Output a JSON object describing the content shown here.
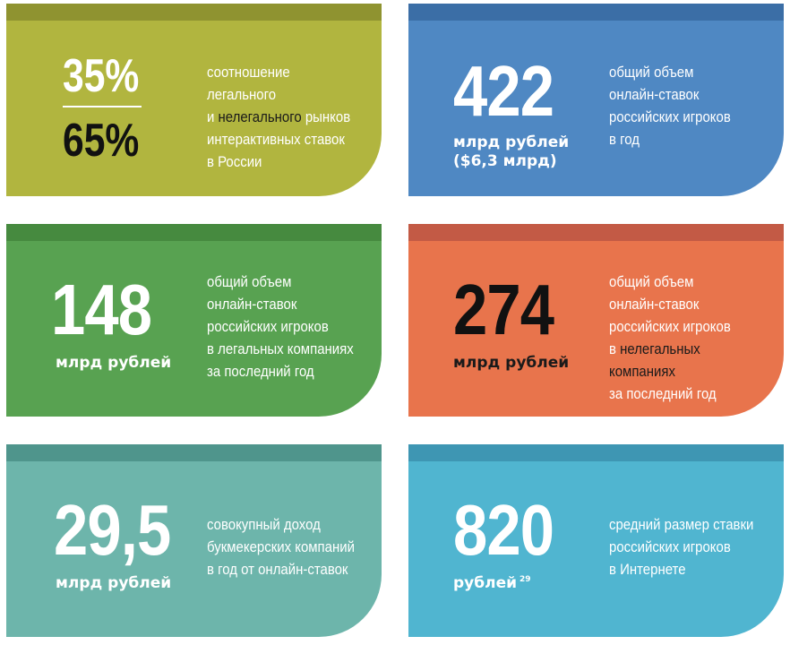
{
  "cards": [
    {
      "top_pct": "35%",
      "bottom_pct": "65%",
      "desc": {
        "line1": "соотношение легального",
        "line2_a": "и ",
        "line2_hl": "нелегального",
        "line2_b": " рынков",
        "line3": "интерактивных ставок",
        "line4": "в России"
      },
      "colors": {
        "bg": "#b1b53f",
        "stripe": "#8f9330"
      }
    },
    {
      "value": "422",
      "unit_line1": "млрд рублей",
      "unit_line2": "($6,3 млрд)",
      "desc": [
        "общий объем",
        "онлайн-ставок",
        "российских игроков",
        "в год"
      ],
      "colors": {
        "bg": "#4f88c3",
        "stripe": "#3b6ea6"
      }
    },
    {
      "value": "148",
      "unit": "млрд рублей",
      "desc": [
        "общий объем",
        "онлайн-ставок",
        "российских игроков",
        "в легальных компаниях",
        "за последний год"
      ],
      "colors": {
        "bg": "#58a251",
        "stripe": "#468a3f"
      }
    },
    {
      "value": "274",
      "unit": "млрд рублей",
      "desc": {
        "line1": "общий объем",
        "line2": "онлайн-ставок",
        "line3": "российских игроков",
        "line4_a": "в ",
        "line4_hl": "нелегальных компаниях",
        "line5": "за последний год"
      },
      "colors": {
        "bg": "#e8744c",
        "stripe": "#c35a45"
      }
    },
    {
      "value": "29,5",
      "unit": "млрд рублей",
      "desc": [
        "совокупный доход",
        "букмекерских компаний",
        "в год от онлайн-ставок"
      ],
      "colors": {
        "bg": "#6db5ab",
        "stripe": "#4f958c"
      }
    },
    {
      "value": "820",
      "unit": "рублей",
      "footnote": "29",
      "desc": [
        "средний размер ставки",
        "российских игроков",
        "в Интернете"
      ],
      "colors": {
        "bg": "#50b5d0",
        "stripe": "#3e96b3"
      }
    }
  ]
}
